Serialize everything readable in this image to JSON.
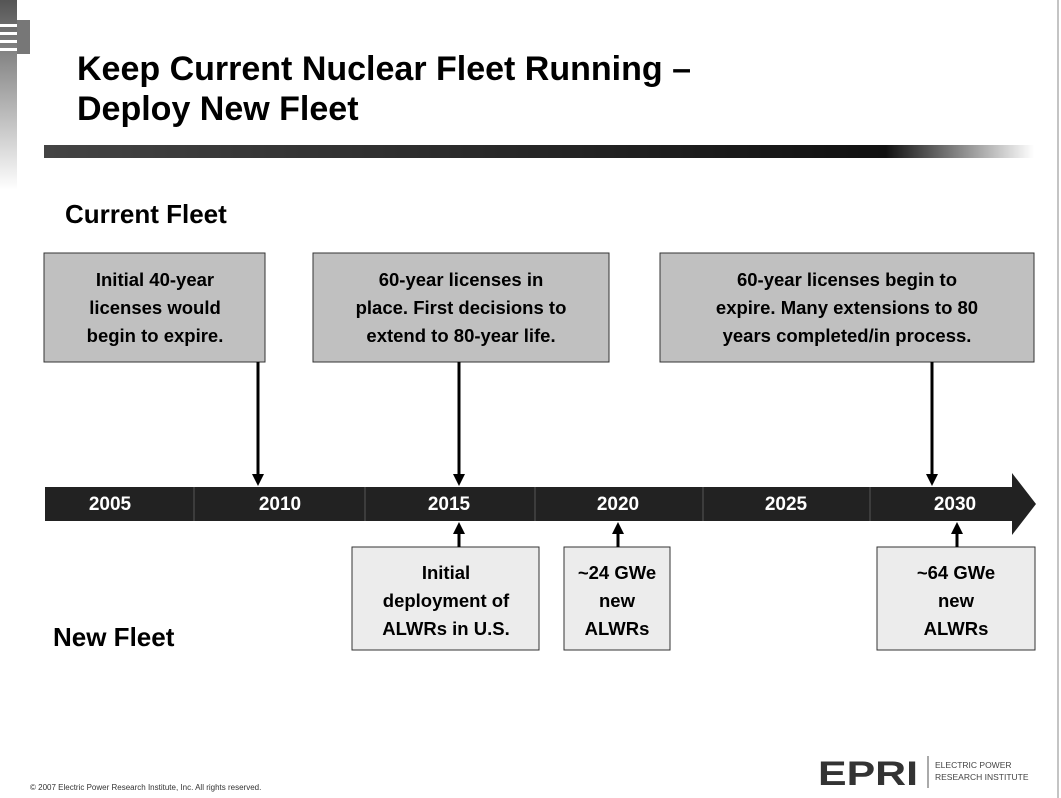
{
  "title": {
    "lines": [
      "Keep Current Nuclear Fleet Running –",
      "Deploy New Fleet"
    ]
  },
  "sections": {
    "current": "Current Fleet",
    "new": "New Fleet"
  },
  "timeline": {
    "years": [
      "2005",
      "2010",
      "2015",
      "2020",
      "2025",
      "2030"
    ]
  },
  "current_boxes": [
    {
      "lines": [
        "Initial 40-year",
        "licenses would",
        "begin to expire."
      ]
    },
    {
      "lines": [
        "60-year licenses in",
        "place. First decisions to",
        "extend to 80-year life."
      ]
    },
    {
      "lines": [
        "60-year licenses begin to",
        "expire. Many extensions to 80",
        "years completed/in process."
      ]
    }
  ],
  "new_boxes": [
    {
      "lines": [
        "Initial",
        "deployment of",
        "ALWRs in U.S."
      ]
    },
    {
      "lines": [
        "~24 GWe",
        "new",
        "ALWRs"
      ]
    },
    {
      "lines": [
        "~64 GWe",
        "new",
        "ALWRs"
      ]
    }
  ],
  "footer": {
    "copyright": "© 2007 Electric Power Research Institute, Inc. All rights reserved.",
    "logo": "EPRI",
    "logo_text": [
      "ELECTRIC POWER",
      "RESEARCH INSTITUTE"
    ]
  }
}
